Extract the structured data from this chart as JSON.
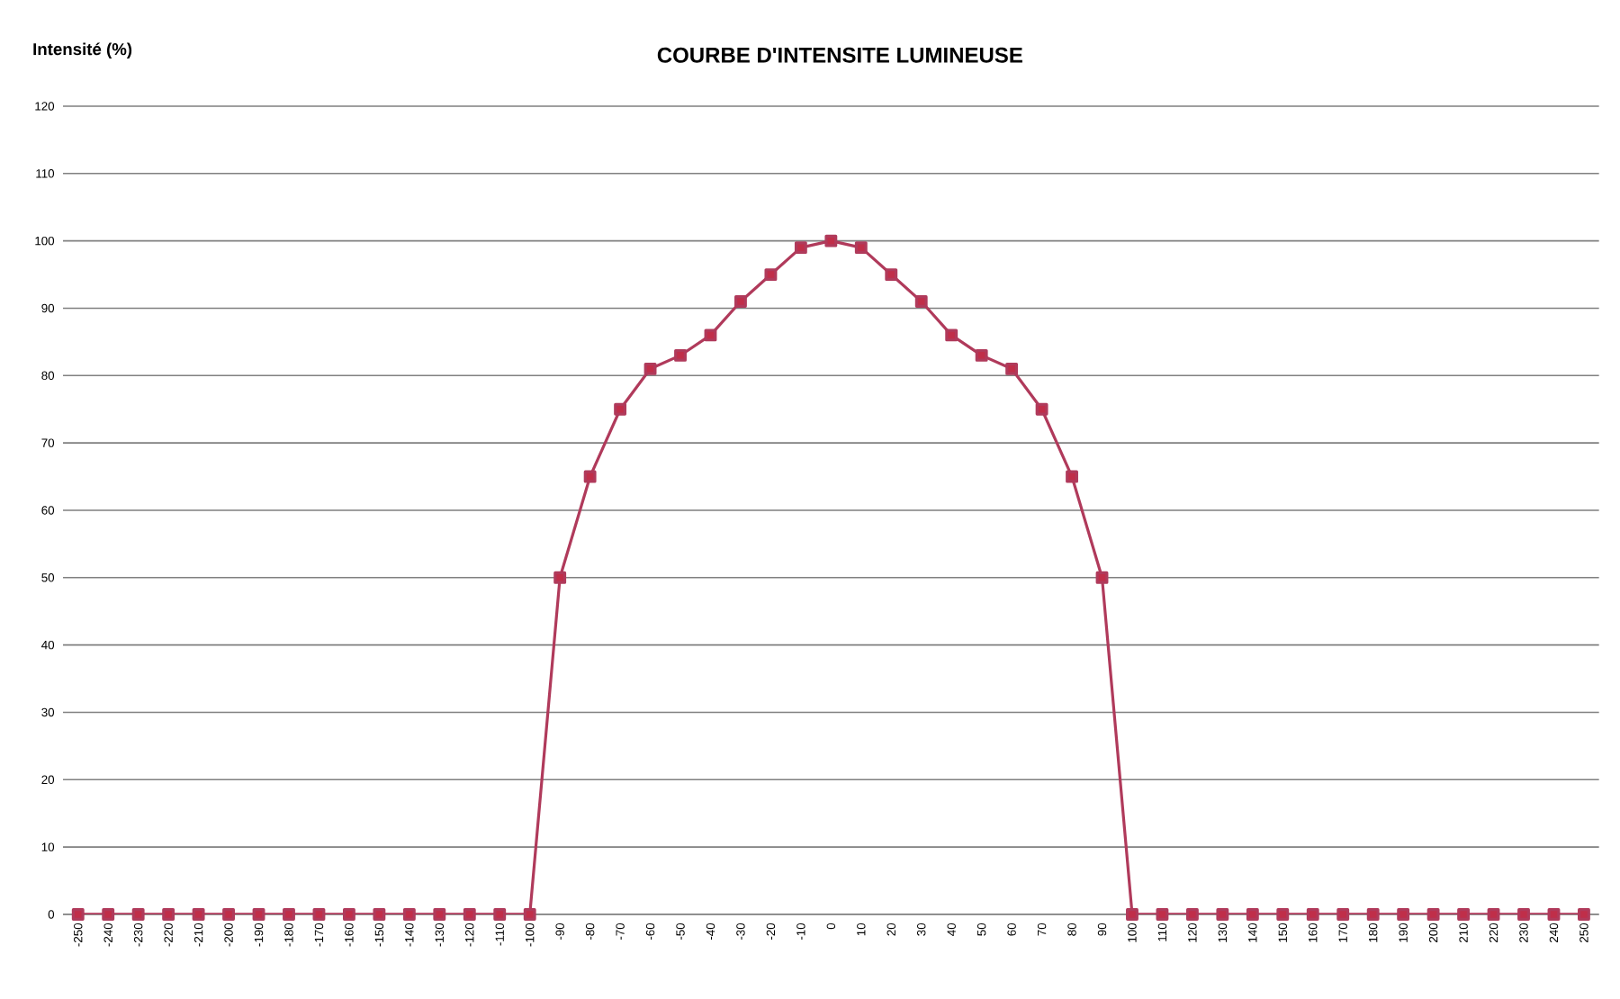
{
  "chart_data": {
    "type": "line",
    "title": "COURBE D'INTENSITE LUMINEUSE",
    "ylabel": "Intensité (%)",
    "categories": [
      "-250",
      "-240",
      "-230",
      "-220",
      "-210",
      "-200",
      "-190",
      "-180",
      "-170",
      "-160",
      "-150",
      "-140",
      "-130",
      "-120",
      "-110",
      "-100",
      "-90",
      "-80",
      "-70",
      "-60",
      "-50",
      "-40",
      "-30",
      "-20",
      "-10",
      "0",
      "10",
      "20",
      "30",
      "40",
      "50",
      "60",
      "70",
      "80",
      "90",
      "100",
      "110",
      "120",
      "130",
      "140",
      "150",
      "160",
      "170",
      "180",
      "190",
      "200",
      "210",
      "220",
      "230",
      "240",
      "250"
    ],
    "series": [
      {
        "color": "#b03a5b",
        "values": [
          0,
          0,
          0,
          0,
          0,
          0,
          0,
          0,
          0,
          0,
          0,
          0,
          0,
          0,
          0,
          0,
          50,
          65,
          75,
          81,
          83,
          86,
          91,
          95,
          99,
          100,
          99,
          95,
          91,
          86,
          83,
          81,
          75,
          65,
          50,
          0,
          0,
          0,
          0,
          0,
          0,
          0,
          0,
          0,
          0,
          0,
          0,
          0,
          0,
          0,
          0
        ]
      }
    ],
    "ylim": [
      0,
      120
    ],
    "yticks": [
      0,
      10,
      20,
      30,
      40,
      50,
      60,
      70,
      80,
      90,
      100,
      110,
      120
    ],
    "grid": "y",
    "marker": "square",
    "line_style": "solid"
  }
}
